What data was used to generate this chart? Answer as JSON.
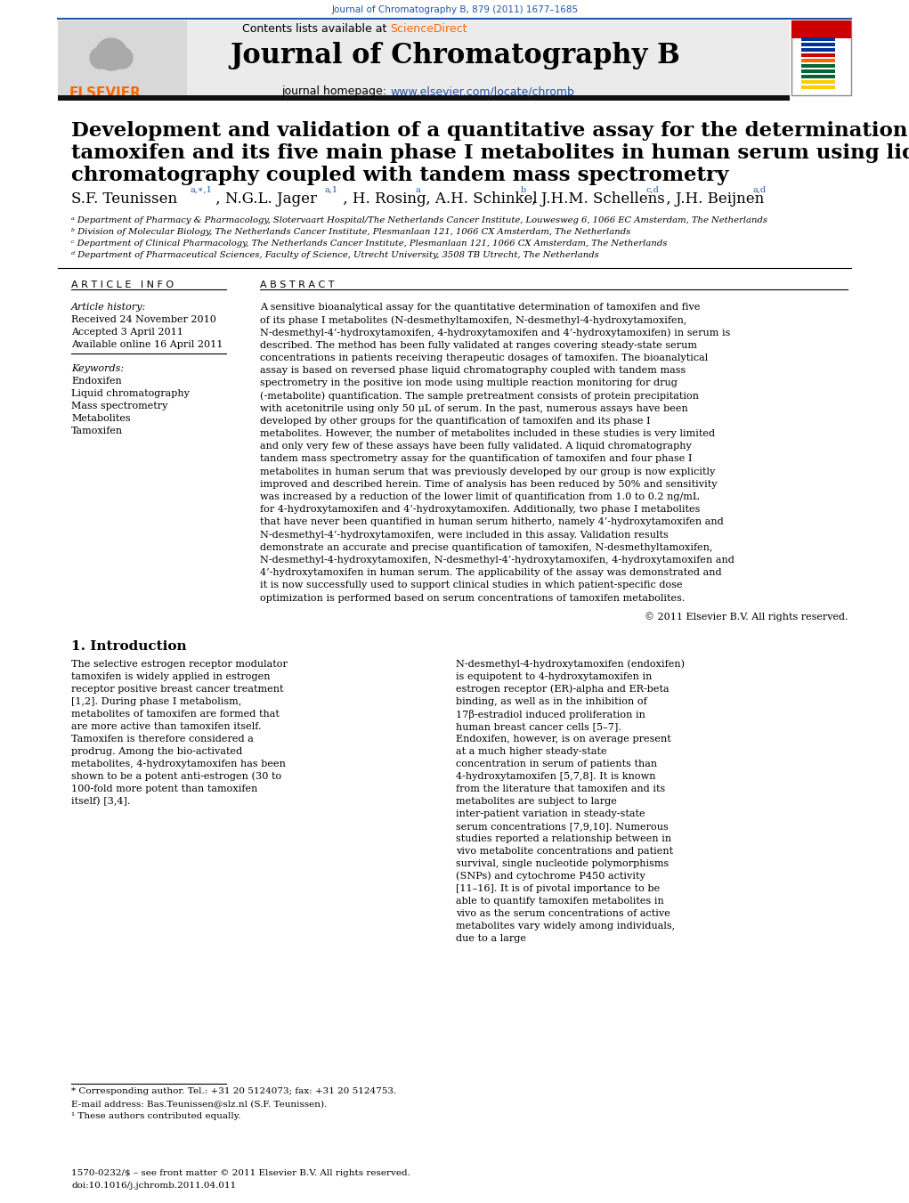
{
  "journal_ref": "Journal of Chromatography B, 879 (2011) 1677–1685",
  "journal_ref_color": "#2255aa",
  "contents_text": "Contents lists available at ",
  "sciencedirect_text": "ScienceDirect",
  "sciencedirect_color": "#ff6600",
  "journal_name": "Journal of Chromatography B",
  "homepage_text": "journal homepage: ",
  "homepage_url": "www.elsevier.com/locate/chromb",
  "homepage_url_color": "#2255aa",
  "affil_a": "ᵃ Department of Pharmacy & Pharmacology, Slotervaart Hospital/The Netherlands Cancer Institute, Louwesweg 6, 1066 EC Amsterdam, The Netherlands",
  "affil_b": "ᵇ Division of Molecular Biology, The Netherlands Cancer Institute, Plesmanlaan 121, 1066 CX Amsterdam, The Netherlands",
  "affil_c": "ᶜ Department of Clinical Pharmacology, The Netherlands Cancer Institute, Plesmanlaan 121, 1066 CX Amsterdam, The Netherlands",
  "affil_d": "ᵈ Department of Pharmaceutical Sciences, Faculty of Science, Utrecht University, 3508 TB Utrecht, The Netherlands",
  "article_info_header": "A R T I C L E   I N F O",
  "abstract_header": "A B S T R A C T",
  "article_history_label": "Article history:",
  "received": "Received 24 November 2010",
  "accepted": "Accepted 3 April 2011",
  "available": "Available online 16 April 2011",
  "keywords_label": "Keywords:",
  "keywords": [
    "Endoxifen",
    "Liquid chromatography",
    "Mass spectrometry",
    "Metabolites",
    "Tamoxifen"
  ],
  "abstract_text": "A sensitive bioanalytical assay for the quantitative determination of tamoxifen and five of its phase I metabolites (N-desmethyltamoxifen, N-desmethyl-4-hydroxytamoxifen, N-desmethyl-4’-hydroxytamoxifen, 4-hydroxytamoxifen and 4’-hydroxytamoxifen) in serum is described. The method has been fully validated at ranges covering steady-state serum concentrations in patients receiving therapeutic dosages of tamoxifen. The bioanalytical assay is based on reversed phase liquid chromatography coupled with tandem mass spectrometry in the positive ion mode using multiple reaction monitoring for drug (-metabolite) quantification. The sample pretreatment consists of protein precipitation with acetonitrile using only 50 μL of serum. In the past, numerous assays have been developed by other groups for the quantification of tamoxifen and its phase I metabolites. However, the number of metabolites included in these studies is very limited and only very few of these assays have been fully validated. A liquid chromatography tandem mass spectrometry assay for the quantification of tamoxifen and four phase I metabolites in human serum that was previously developed by our group is now explicitly improved and described herein. Time of analysis has been reduced by 50% and sensitivity was increased by a reduction of the lower limit of quantification from 1.0 to 0.2 ng/mL for 4-hydroxytamoxifen and 4’-hydroxytamoxifen. Additionally, two phase I metabolites that have never been quantified in human serum hitherto, namely 4’-hydroxytamoxifen and N-desmethyl-4’-hydroxytamoxifen, were included in this assay. Validation results demonstrate an accurate and precise quantification of tamoxifen, N-desmethyltamoxifen, N-desmethyl-4-hydroxytamoxifen, N-desmethyl-4’-hydroxytamoxifen, 4-hydroxytamoxifen and 4’-hydroxytamoxifen in human serum. The applicability of the assay was demonstrated and it is now successfully used to support clinical studies in which patient-specific dose optimization is performed based on serum concentrations of tamoxifen metabolites.",
  "copyright_text": "© 2011 Elsevier B.V. All rights reserved.",
  "section1_header": "1. Introduction",
  "intro_col1": "The selective estrogen receptor modulator tamoxifen is widely applied in estrogen receptor positive breast cancer treatment [1,2]. During phase I metabolism, metabolites of tamoxifen are formed that are more active than tamoxifen itself. Tamoxifen is therefore considered a prodrug. Among the bio-activated metabolites, 4-hydroxytamoxifen has been shown to be a potent anti-estrogen (30 to 100-fold more potent than tamoxifen itself) [3,4].",
  "intro_col2": "N-desmethyl-4-hydroxytamoxifen (endoxifen) is equipotent to 4-hydroxytamoxifen in estrogen receptor (ER)-alpha and ER-beta binding, as well as in the inhibition of 17β-estradiol induced proliferation in human breast cancer cells [5–7]. Endoxifen, however, is on average present at a much higher steady-state concentration in serum of patients than 4-hydroxytamoxifen [5,7,8]. It is known from the literature that tamoxifen and its metabolites are subject to large inter-patient variation in steady-state serum concentrations [7,9,10]. Numerous studies reported a relationship between in vivo metabolite concentrations and patient survival, single nucleotide polymorphisms (SNPs) and cytochrome P450 activity [11–16]. It is of pivotal importance to be able to quantify tamoxifen metabolites in vivo as the serum concentrations of active metabolites vary widely among individuals, due to a large",
  "footnote_corresponding": "* Corresponding author. Tel.: +31 20 5124073; fax: +31 20 5124753.",
  "footnote_email": "E-mail address: Bas.Teunissen@slz.nl (S.F. Teunissen).",
  "footnote_equal": "¹ These authors contributed equally.",
  "copyright_bottom": "1570-0232/$ – see front matter © 2011 Elsevier B.V. All rights reserved.",
  "doi": "doi:10.1016/j.jchromb.2011.04.011",
  "bg_header_color": "#ebebeb",
  "black_bar_color": "#111111",
  "elsevier_orange": "#ff6600",
  "blue_color": "#2255aa",
  "cover_bar_colors": [
    "#003399",
    "#003399",
    "#003399",
    "#cc0000",
    "#ff6600",
    "#006633",
    "#006633",
    "#006633",
    "#ffcc00",
    "#ffcc00"
  ]
}
